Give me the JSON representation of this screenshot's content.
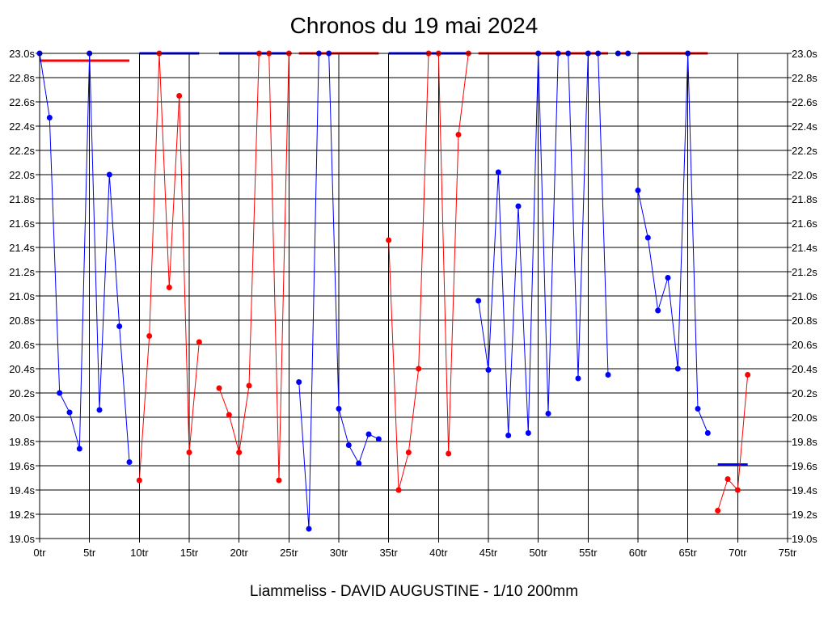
{
  "chart_data": {
    "type": "line",
    "title": "Chronos du 19 mai 2024",
    "footer": "Liammeliss - DAVID AUGUSTINE - 1/10 200mm",
    "xlim": [
      0,
      75
    ],
    "ylim": [
      19.0,
      23.0
    ],
    "x_ticks": [
      0,
      5,
      10,
      15,
      20,
      25,
      30,
      35,
      40,
      45,
      50,
      55,
      60,
      65,
      70,
      75
    ],
    "x_tick_labels": [
      "0tr",
      "5tr",
      "10tr",
      "15tr",
      "20tr",
      "25tr",
      "30tr",
      "35tr",
      "40tr",
      "45tr",
      "50tr",
      "55tr",
      "60tr",
      "65tr",
      "70tr",
      "75tr"
    ],
    "y_ticks": [
      19.0,
      19.2,
      19.4,
      19.6,
      19.8,
      20.0,
      20.2,
      20.4,
      20.6,
      20.8,
      21.0,
      21.2,
      21.4,
      21.6,
      21.8,
      22.0,
      22.2,
      22.4,
      22.6,
      22.8,
      23.0
    ],
    "y_tick_labels": [
      "19.0s",
      "19.2s",
      "19.4s",
      "19.6s",
      "19.8s",
      "20.0s",
      "20.2s",
      "20.4s",
      "20.6s",
      "20.8s",
      "21.0s",
      "21.2s",
      "21.4s",
      "21.6s",
      "21.8s",
      "22.0s",
      "22.2s",
      "22.4s",
      "22.6s",
      "22.8s",
      "23.0s"
    ],
    "grid": true,
    "colors": {
      "blue": "#0000ff",
      "red": "#ff0000"
    },
    "segments": [
      {
        "color": "blue",
        "points": [
          [
            0,
            23.0
          ],
          [
            1,
            22.47
          ],
          [
            2,
            20.2
          ],
          [
            3,
            20.04
          ],
          [
            4,
            19.74
          ],
          [
            5,
            23.0
          ],
          [
            6,
            20.06
          ],
          [
            7,
            22.0
          ],
          [
            8,
            20.75
          ],
          [
            9,
            19.63
          ]
        ]
      },
      {
        "color": "red",
        "points": [
          [
            10,
            19.48
          ],
          [
            11,
            20.67
          ],
          [
            12,
            23.0
          ],
          [
            13,
            21.07
          ],
          [
            14,
            22.65
          ],
          [
            15,
            19.71
          ],
          [
            16,
            20.62
          ]
        ]
      },
      {
        "color": "red",
        "points": [
          [
            18,
            20.24
          ],
          [
            19,
            20.02
          ],
          [
            20,
            19.71
          ],
          [
            21,
            20.26
          ],
          [
            22,
            23.0
          ],
          [
            23,
            23.0
          ],
          [
            24,
            19.48
          ],
          [
            25,
            23.0
          ]
        ]
      },
      {
        "color": "blue",
        "points": [
          [
            26,
            20.29
          ],
          [
            27,
            19.08
          ],
          [
            28,
            23.0
          ],
          [
            29,
            23.0
          ],
          [
            30,
            20.07
          ],
          [
            31,
            19.77
          ],
          [
            32,
            19.62
          ],
          [
            33,
            19.86
          ],
          [
            34,
            19.82
          ]
        ]
      },
      {
        "color": "red",
        "points": [
          [
            35,
            21.46
          ],
          [
            36,
            19.4
          ],
          [
            37,
            19.71
          ],
          [
            38,
            20.4
          ],
          [
            39,
            23.0
          ],
          [
            40,
            23.0
          ],
          [
            41,
            19.7
          ],
          [
            42,
            22.33
          ],
          [
            43,
            23.0
          ]
        ]
      },
      {
        "color": "blue",
        "points": [
          [
            44,
            20.96
          ],
          [
            45,
            20.39
          ],
          [
            46,
            22.02
          ],
          [
            47,
            19.85
          ],
          [
            48,
            21.74
          ],
          [
            49,
            19.87
          ],
          [
            50,
            23.0
          ],
          [
            51,
            20.03
          ],
          [
            52,
            23.0
          ],
          [
            53,
            23.0
          ],
          [
            54,
            20.32
          ],
          [
            55,
            23.0
          ],
          [
            56,
            23.0
          ],
          [
            57,
            20.35
          ]
        ]
      },
      {
        "color": "blue",
        "points": [
          [
            58,
            23.0
          ],
          [
            59,
            23.0
          ]
        ]
      },
      {
        "color": "blue",
        "points": [
          [
            60,
            21.87
          ],
          [
            61,
            21.48
          ],
          [
            62,
            20.88
          ],
          [
            63,
            21.15
          ],
          [
            64,
            20.4
          ],
          [
            65,
            23.0
          ],
          [
            66,
            20.07
          ],
          [
            67,
            19.87
          ]
        ]
      },
      {
        "color": "red",
        "points": [
          [
            68,
            19.23
          ],
          [
            69,
            19.49
          ],
          [
            70,
            19.4
          ],
          [
            71,
            20.35
          ]
        ]
      }
    ],
    "reference_lines": [
      {
        "color": "red",
        "y": 22.94,
        "x": [
          0,
          9
        ]
      },
      {
        "color": "blue",
        "y": 23.0,
        "x": [
          10,
          16
        ]
      },
      {
        "color": "blue",
        "y": 23.0,
        "x": [
          18,
          25
        ]
      },
      {
        "color": "red",
        "y": 23.0,
        "x": [
          26,
          34
        ]
      },
      {
        "color": "blue",
        "y": 23.0,
        "x": [
          35,
          43
        ]
      },
      {
        "color": "red",
        "y": 23.0,
        "x": [
          44,
          57
        ]
      },
      {
        "color": "red",
        "y": 23.0,
        "x": [
          58,
          59
        ]
      },
      {
        "color": "red",
        "y": 23.0,
        "x": [
          60,
          67
        ]
      },
      {
        "color": "blue",
        "y": 19.61,
        "x": [
          68,
          71
        ]
      }
    ]
  }
}
